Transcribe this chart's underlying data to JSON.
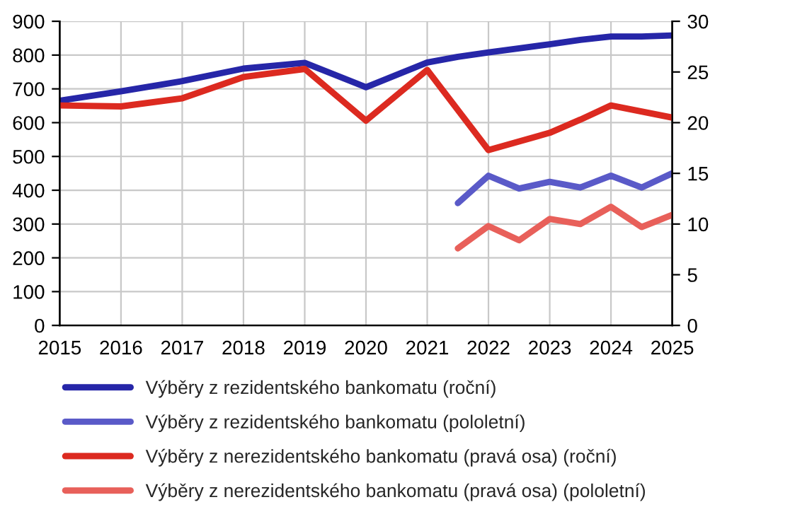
{
  "chart_data": {
    "type": "line",
    "xlim": [
      2015,
      2025
    ],
    "xticks": [
      2015,
      2016,
      2017,
      2018,
      2019,
      2020,
      2021,
      2022,
      2023,
      2024,
      2025
    ],
    "ylim": [
      0,
      900
    ],
    "yticks": [
      0,
      100,
      200,
      300,
      400,
      500,
      600,
      700,
      800,
      900
    ],
    "y2lim": [
      0,
      30
    ],
    "y2ticks": [
      0,
      5,
      10,
      15,
      20,
      25,
      30
    ],
    "grid": true,
    "legend": "bottom",
    "line_style": "solid",
    "marker": "none",
    "series": [
      {
        "name": "Výběry z rezidentského bankomatu (roční)",
        "color": "#2626a8",
        "x": [
          2015,
          2016,
          2017,
          2018,
          2019,
          2020,
          2021,
          2021.5,
          2022,
          2022.5,
          2023,
          2023.5,
          2024,
          2024.5,
          2025
        ],
        "values": [
          665,
          693,
          723,
          760,
          777,
          705,
          778,
          795,
          808,
          820,
          832,
          845,
          855,
          855,
          858
        ]
      },
      {
        "name": "Výběry z rezidentského bankomatu (pololetní)",
        "color": "#5a5ac8",
        "x": [
          2021.5,
          2022,
          2022.5,
          2023,
          2023.5,
          2024,
          2024.5,
          2025
        ],
        "values": [
          362,
          443,
          405,
          425,
          408,
          443,
          408,
          450
        ]
      },
      {
        "name": "Výběry z nerezidentského bankomatu (pravá osa) (roční)",
        "color": "#dc2a20",
        "axis": "y2",
        "x": [
          2015,
          2016,
          2017,
          2018,
          2019,
          2020,
          2021,
          2022,
          2023,
          2023.5,
          2024,
          2025
        ],
        "values": [
          21.7,
          21.6,
          22.4,
          24.5,
          25.3,
          20.2,
          25.2,
          17.3,
          19.0,
          20.3,
          21.7,
          20.5
        ]
      },
      {
        "name": "Výběry z nerezidentského bankomatu (pravá osa) (pololetní)",
        "color": "#e8605a",
        "axis": "y2",
        "x": [
          2021.5,
          2022,
          2022.5,
          2023,
          2023.5,
          2024,
          2024.5,
          2025
        ],
        "values": [
          7.6,
          9.8,
          8.4,
          10.5,
          10.0,
          11.7,
          9.7,
          10.9
        ]
      }
    ]
  }
}
